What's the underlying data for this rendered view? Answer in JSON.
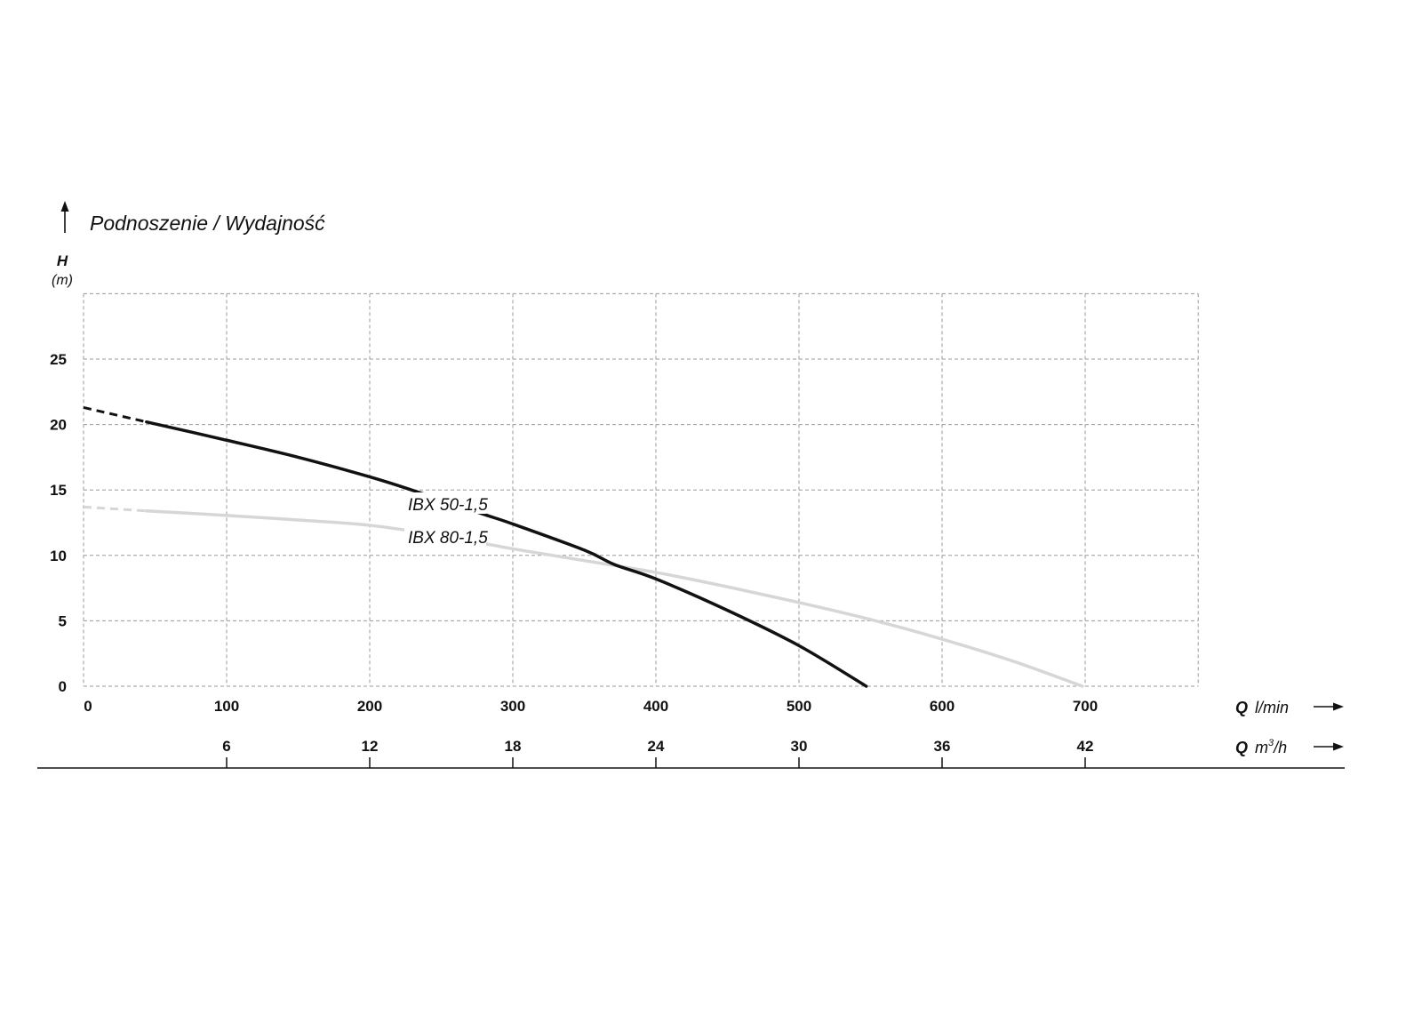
{
  "chart_data": {
    "type": "line",
    "title": "Podnoszenie / Wydajność",
    "ylabel": "H",
    "yunit": "(m)",
    "xlabel": "Q",
    "xunit": "l/min",
    "x2label": "Q",
    "x2unit_base": "m",
    "x2unit_sup": "3",
    "x2unit_tail": "/h",
    "xlim": [
      0,
      779
    ],
    "ylim": [
      0,
      30
    ],
    "grid": true,
    "grid_style": "dashed",
    "x_ticks": [
      "0",
      "100",
      "200",
      "300",
      "400",
      "500",
      "600",
      "700"
    ],
    "x_tick_values": [
      0,
      100,
      200,
      300,
      400,
      500,
      600,
      700
    ],
    "y_ticks": [
      "0",
      "5",
      "10",
      "15",
      "20",
      "25"
    ],
    "y_tick_values": [
      0,
      5,
      10,
      15,
      20,
      25
    ],
    "x2_ticks": [
      "6",
      "12",
      "18",
      "24",
      "30",
      "36",
      "42"
    ],
    "x2_tick_positions_lmin": [
      100,
      200,
      300,
      400,
      500,
      600,
      700
    ],
    "series": [
      {
        "name": "IBX 50-1,5",
        "color": "#111111",
        "dashed_until": 44,
        "points": [
          [
            0,
            21.3
          ],
          [
            44,
            20.2
          ],
          [
            100,
            18.8
          ],
          [
            150,
            17.5
          ],
          [
            200,
            16.0
          ],
          [
            232,
            14.9
          ],
          [
            278,
            13.2
          ],
          [
            300,
            12.4
          ],
          [
            350,
            10.4
          ],
          [
            371,
            9.3
          ],
          [
            400,
            8.2
          ],
          [
            450,
            5.8
          ],
          [
            500,
            3.1
          ],
          [
            547,
            0
          ]
        ]
      },
      {
        "name": "IBX 80-1,5",
        "color": "#d6d6d6",
        "label_color": "#bdbdbd",
        "dashed_until": 44,
        "points": [
          [
            0,
            13.7
          ],
          [
            44,
            13.4
          ],
          [
            100,
            13.05
          ],
          [
            150,
            12.7
          ],
          [
            200,
            12.3
          ],
          [
            250,
            11.5
          ],
          [
            300,
            10.5
          ],
          [
            350,
            9.6
          ],
          [
            400,
            8.7
          ],
          [
            450,
            7.6
          ],
          [
            500,
            6.4
          ],
          [
            550,
            5.1
          ],
          [
            600,
            3.6
          ],
          [
            650,
            1.9
          ],
          [
            698,
            0
          ]
        ]
      }
    ]
  }
}
